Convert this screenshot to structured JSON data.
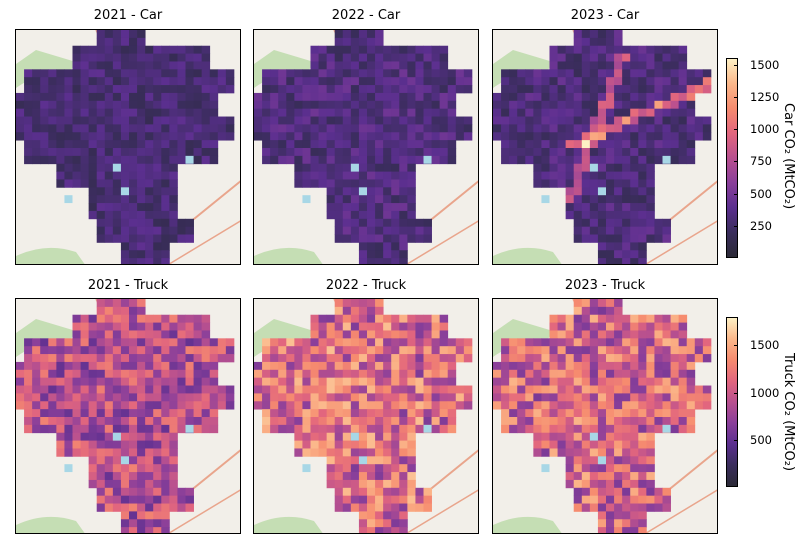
{
  "chart_data": {
    "type": "heatmap",
    "grid": {
      "rows": 2,
      "cols": 3
    },
    "panels": [
      {
        "title": "2021 - Car",
        "year": 2021,
        "vehicle": "Car",
        "mean_level": 0.18,
        "road_boost": 0.0
      },
      {
        "title": "2022 - Car",
        "year": 2022,
        "vehicle": "Car",
        "mean_level": 0.21,
        "road_boost": 0.0
      },
      {
        "title": "2023 - Car",
        "year": 2023,
        "vehicle": "Car",
        "mean_level": 0.2,
        "road_boost": 0.55
      },
      {
        "title": "2021 - Truck",
        "year": 2021,
        "vehicle": "Truck",
        "mean_level": 0.5,
        "road_boost": 0.0
      },
      {
        "title": "2022 - Truck",
        "year": 2022,
        "vehicle": "Truck",
        "mean_level": 0.62,
        "road_boost": 0.0
      },
      {
        "title": "2023 - Truck",
        "year": 2023,
        "vehicle": "Truck",
        "mean_level": 0.6,
        "road_boost": 0.0
      }
    ],
    "colorbars": [
      {
        "label": "Car CO₂ (MtCO₂)",
        "min": 0,
        "max": 1550,
        "ticks": [
          250,
          500,
          750,
          1000,
          1250,
          1500
        ]
      },
      {
        "label": "Truck CO₂ (MtCO₂)",
        "min": 0,
        "max": 1800,
        "ticks": [
          500,
          1000,
          1500
        ]
      }
    ],
    "colormap": [
      "#2b2a36",
      "#3a2d5c",
      "#5b2f8f",
      "#8a3f9a",
      "#b8508f",
      "#e2667e",
      "#f68b6f",
      "#fbb78a",
      "#fdf0c4"
    ],
    "basemap_colors": {
      "land": "#f2efe9",
      "park": "#b9d9a6",
      "water": "#a8d7e6",
      "road": "#e9a58c"
    }
  }
}
